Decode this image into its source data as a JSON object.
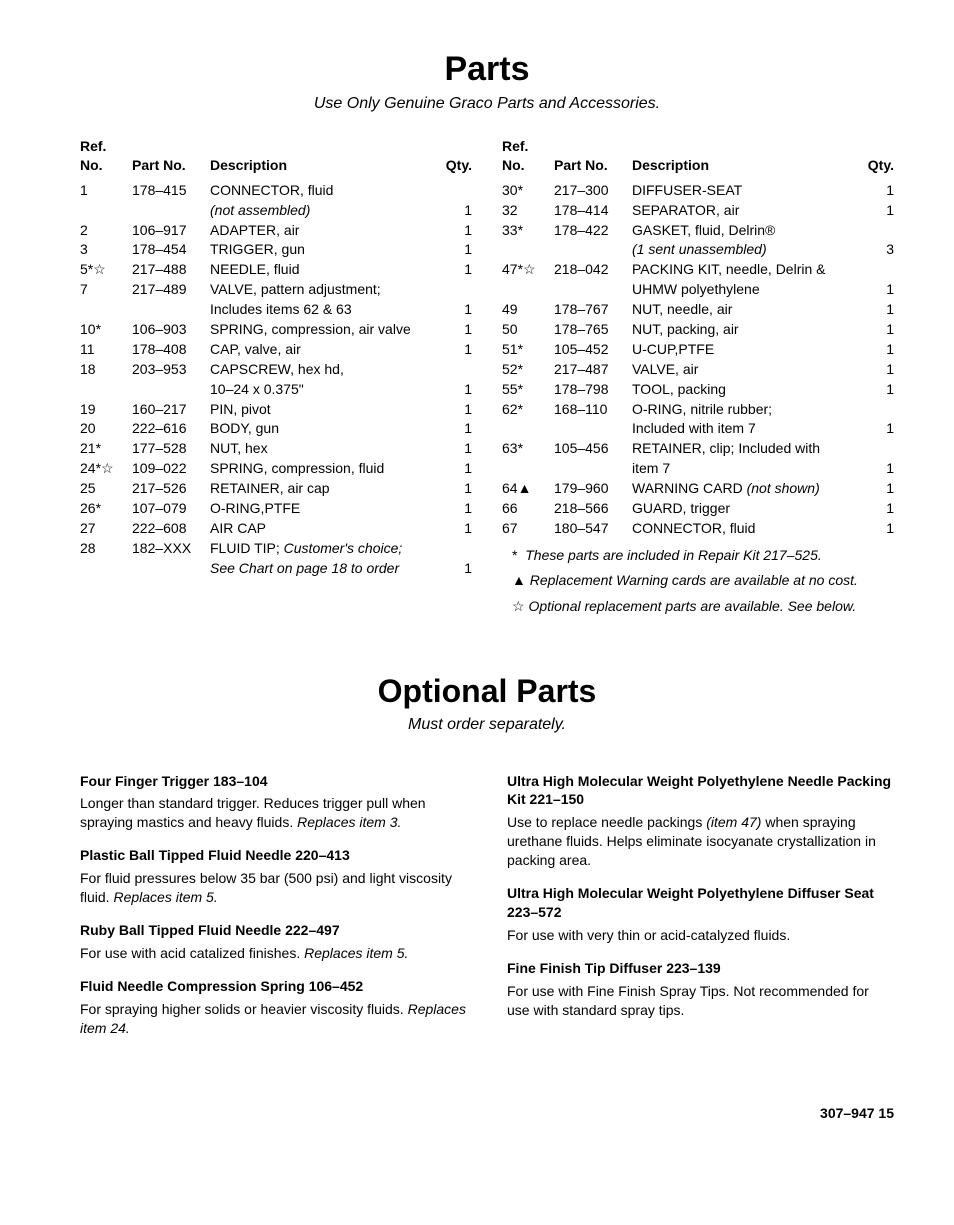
{
  "title_parts": "Parts",
  "subtitle_parts": "Use Only Genuine Graco Parts and Accessories.",
  "headers": {
    "ref1": "Ref.",
    "ref2": "No.",
    "part": "Part No.",
    "desc": "Description",
    "qty": "Qty."
  },
  "left_rows": [
    {
      "ref": "1",
      "part": "178–415",
      "desc": "CONNECTOR, fluid",
      "qty": ""
    },
    {
      "ref": "",
      "part": "",
      "desc": "(not assembled)",
      "qty": "1",
      "ital": true
    },
    {
      "ref": "2",
      "part": "106–917",
      "desc": "ADAPTER, air",
      "qty": "1"
    },
    {
      "ref": "3",
      "part": "178–454",
      "desc": "TRIGGER, gun",
      "qty": "1"
    },
    {
      "ref": "5*☆",
      "part": "217–488",
      "desc": "NEEDLE, fluid",
      "qty": "1"
    },
    {
      "ref": "7",
      "part": "217–489",
      "desc": "VALVE, pattern adjustment;",
      "qty": ""
    },
    {
      "ref": "",
      "part": "",
      "desc": "Includes items 62 & 63",
      "qty": "1"
    },
    {
      "ref": "10*",
      "part": "106–903",
      "desc": "SPRING, compression, air valve",
      "qty": "1"
    },
    {
      "ref": "11",
      "part": "178–408",
      "desc": "CAP, valve, air",
      "qty": "1"
    },
    {
      "ref": "18",
      "part": "203–953",
      "desc": "CAPSCREW, hex hd,",
      "qty": ""
    },
    {
      "ref": "",
      "part": "",
      "desc": "10–24 x 0.375\"",
      "qty": "1"
    },
    {
      "ref": "19",
      "part": "160–217",
      "desc": "PIN, pivot",
      "qty": "1"
    },
    {
      "ref": "20",
      "part": "222–616",
      "desc": "BODY, gun",
      "qty": "1"
    },
    {
      "ref": "21*",
      "part": "177–528",
      "desc": "NUT, hex",
      "qty": "1"
    },
    {
      "ref": "24*☆",
      "part": "109–022",
      "desc": "SPRING, compression, fluid",
      "qty": "1"
    },
    {
      "ref": "25",
      "part": "217–526",
      "desc": "RETAINER, air cap",
      "qty": "1"
    },
    {
      "ref": "26*",
      "part": "107–079",
      "desc": "O-RING,PTFE",
      "qty": "1"
    },
    {
      "ref": "27",
      "part": "222–608",
      "desc": "AIR CAP",
      "qty": "1"
    },
    {
      "ref": "28",
      "part": "182–XXX",
      "desc": "FLUID TIP; Customer's choice;",
      "qty": "",
      "ital_tail": true
    },
    {
      "ref": "",
      "part": "",
      "desc": "See Chart on page 18 to order",
      "qty": "1",
      "ital": true
    }
  ],
  "right_rows": [
    {
      "ref": "30*",
      "part": "217–300",
      "desc": "DIFFUSER-SEAT",
      "qty": "1"
    },
    {
      "ref": "32",
      "part": "178–414",
      "desc": "SEPARATOR, air",
      "qty": "1"
    },
    {
      "ref": "33*",
      "part": "178–422",
      "desc": "GASKET, fluid, Delrin®",
      "qty": ""
    },
    {
      "ref": "",
      "part": "",
      "desc": "(1 sent unassembled)",
      "qty": "3",
      "ital": true
    },
    {
      "ref": "47*☆",
      "part": "218–042",
      "desc": "PACKING KIT, needle, Delrin &",
      "qty": ""
    },
    {
      "ref": "",
      "part": "",
      "desc": "UHMW polyethylene",
      "qty": "1"
    },
    {
      "ref": "49",
      "part": "178–767",
      "desc": "NUT, needle, air",
      "qty": "1"
    },
    {
      "ref": "50",
      "part": "178–765",
      "desc": "NUT, packing, air",
      "qty": "1"
    },
    {
      "ref": "51*",
      "part": "105–452",
      "desc": "U-CUP,PTFE",
      "qty": "1"
    },
    {
      "ref": "52*",
      "part": "217–487",
      "desc": "VALVE, air",
      "qty": "1"
    },
    {
      "ref": "55*",
      "part": "178–798",
      "desc": "TOOL, packing",
      "qty": "1"
    },
    {
      "ref": "62*",
      "part": "168–110",
      "desc": "O-RING, nitrile rubber;",
      "qty": ""
    },
    {
      "ref": "",
      "part": "",
      "desc": "Included with item 7",
      "qty": "1"
    },
    {
      "ref": "63*",
      "part": "105–456",
      "desc": "RETAINER, clip; Included with",
      "qty": ""
    },
    {
      "ref": "",
      "part": "",
      "desc": "item 7",
      "qty": "1"
    },
    {
      "ref": "64▲",
      "part": "179–960",
      "desc": "WARNING CARD (not shown)",
      "qty": "1",
      "ital_tail": true
    },
    {
      "ref": "66",
      "part": "218–566",
      "desc": "GUARD, trigger",
      "qty": "1"
    },
    {
      "ref": "67",
      "part": "180–547",
      "desc": "CONNECTOR, fluid",
      "qty": "1"
    }
  ],
  "note_star": "These parts are included in Repair Kit 217–525.",
  "note_triangle": "Replacement Warning cards are available at no cost.",
  "note_openstar": "Optional replacement parts are available. See below.",
  "sym_star": "*",
  "sym_tri": "▲",
  "sym_ostar": "☆",
  "title_optional": "Optional Parts",
  "subtitle_optional": "Must order separately.",
  "opt_left": [
    {
      "h": "Four Finger Trigger 183–104",
      "p": "Longer than standard trigger. Reduces trigger pull when spraying mastics and heavy fluids. Replaces item 3."
    },
    {
      "h": "Plastic Ball Tipped Fluid Needle 220–413",
      "p": "For fluid pressures below 35 bar (500 psi) and light viscosity fluid. Replaces item 5."
    },
    {
      "h": "Ruby Ball Tipped Fluid Needle 222–497",
      "p": "For use with acid catalized finishes. Replaces item 5."
    },
    {
      "h": "Fluid Needle Compression Spring 106–452",
      "p": "For spraying higher solids or heavier viscosity fluids. Replaces item 24."
    }
  ],
  "opt_right": [
    {
      "h": "Ultra High Molecular Weight Polyethylene Needle Packing Kit 221–150",
      "p": "Use to replace needle packings (item 47) when spraying urethane fluids. Helps eliminate isocyanate crystallization in packing area."
    },
    {
      "h": "Ultra High Molecular Weight Polyethylene Diffuser Seat 223–572",
      "p": "For use with very thin or acid-catalyzed fluids."
    },
    {
      "h": "Fine Finish Tip Diffuser 223–139",
      "p": "For use with Fine Finish Spray Tips. Not recommended for use with standard spray tips."
    }
  ],
  "footer": "307–947   15"
}
